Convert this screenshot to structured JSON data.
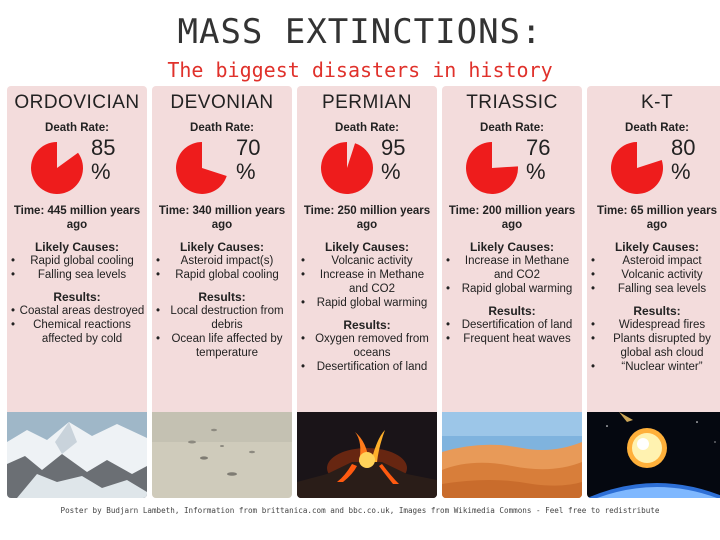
{
  "title": "MASS EXTINCTIONS:",
  "subtitle": "The biggest disasters in history",
  "death_rate_label": "Death Rate:",
  "causes_label": "Likely Causes:",
  "results_label": "Results:",
  "events": [
    {
      "name": "ORDOVICIAN",
      "rate_num": "85",
      "rate": 85,
      "time": "Time: 445 million years ago",
      "causes": [
        "Rapid global cooling",
        "Falling sea levels"
      ],
      "results": [
        "Coastal areas destroyed",
        "Chemical reactions affected by cold"
      ],
      "image": "icy-landscape"
    },
    {
      "name": "DEVONIAN",
      "rate_num": "70",
      "rate": 70,
      "time": "Time: 340 million years ago",
      "causes": [
        "Asteroid impact(s)",
        "Rapid global cooling"
      ],
      "results": [
        "Local destruction from debris",
        "Ocean life affected by temperature"
      ],
      "image": "sandy-seabed"
    },
    {
      "name": "PERMIAN",
      "rate_num": "95",
      "rate": 95,
      "time": "Time: 250 million years ago",
      "causes": [
        "Volcanic activity",
        "Increase in Methane and CO2",
        "Rapid global warming"
      ],
      "results": [
        "Oxygen removed from oceans",
        "Desertification of land"
      ],
      "image": "volcano-eruption"
    },
    {
      "name": "TRIASSIC",
      "rate_num": "76",
      "rate": 76,
      "time": "Time: 200 million years ago",
      "causes": [
        "Increase in Methane and CO2",
        "Rapid global warming"
      ],
      "results": [
        "Desertification of land",
        "Frequent heat waves"
      ],
      "image": "desert-dunes"
    },
    {
      "name": "K-T",
      "rate_num": "80",
      "rate": 80,
      "time": "Time: 65 million years ago",
      "causes": [
        "Asteroid impact",
        "Volcanic activity",
        "Falling sea levels"
      ],
      "results": [
        "Widespread fires",
        "Plants disrupted by global ash cloud",
        "“Nuclear winter”"
      ],
      "image": "asteroid-impact"
    }
  ],
  "percent_sign": "%",
  "pie_color": "#ee1c1c",
  "footer": "Poster by Budjarn Lambeth, Information from brittanica.com and bbc.co.uk, Images from Wikimedia Commons - Feel free to redistribute"
}
